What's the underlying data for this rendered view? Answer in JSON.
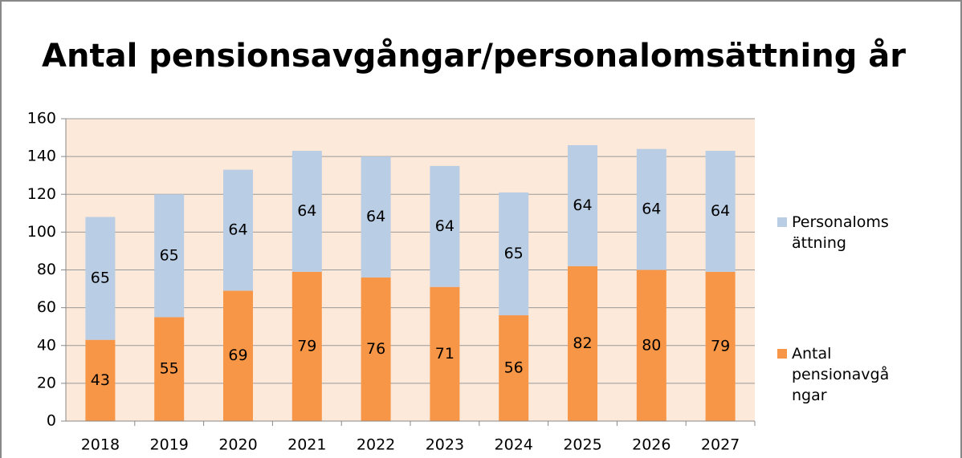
{
  "chart_data": {
    "type": "stacked_bar",
    "title": "Antal pensionsavgångar/personalomsättning år",
    "categories": [
      "2018",
      "2019",
      "2020",
      "2021",
      "2022",
      "2023",
      "2024",
      "2025",
      "2026",
      "2027"
    ],
    "series": [
      {
        "name": "Antal pensionavgångar",
        "color": "#f79646",
        "values": [
          43,
          55,
          69,
          79,
          76,
          71,
          56,
          82,
          80,
          79
        ]
      },
      {
        "name": "Personalomsättning",
        "color": "#b9cde5",
        "values": [
          65,
          65,
          64,
          64,
          64,
          64,
          65,
          64,
          64,
          64
        ]
      }
    ],
    "ylim": [
      0,
      160
    ],
    "yticks": [
      0,
      20,
      40,
      60,
      80,
      100,
      120,
      140,
      160
    ],
    "grid": true,
    "legend": "right"
  }
}
